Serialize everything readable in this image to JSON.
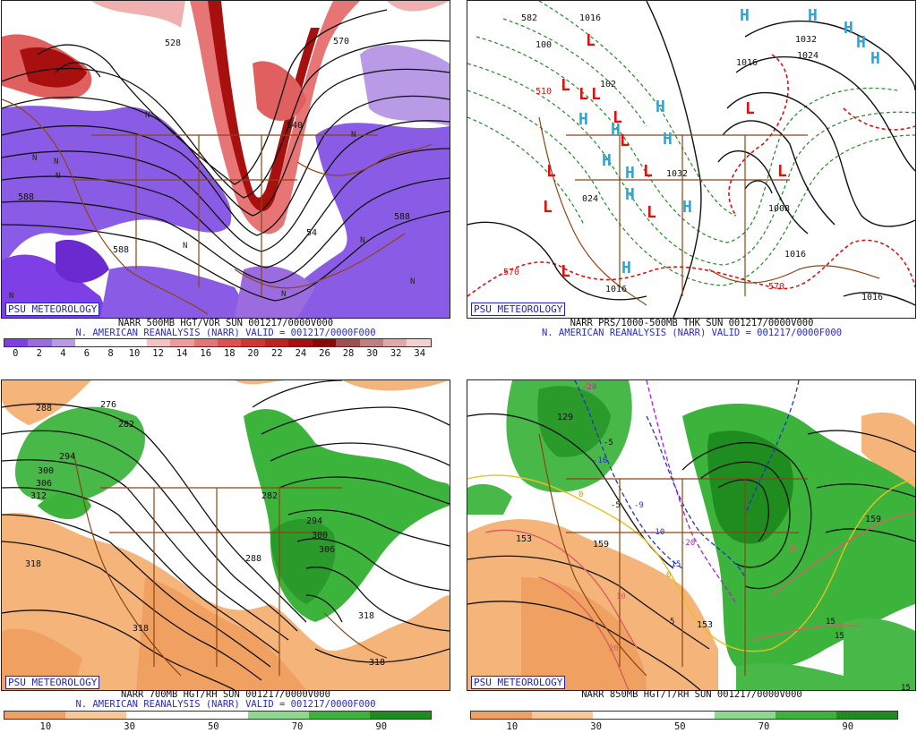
{
  "panels": [
    {
      "id": "p500",
      "source_badge": "PSU METEOROLOGY",
      "title_line": "NARR 500MB HGT/VOR SUN 001217/0000V000",
      "valid_line": "N. AMERICAN REANALYSIS (NARR) VALID = 001217/0000F000",
      "contour_labels": [
        "528",
        "588",
        "588",
        "588",
        "540",
        "570",
        "54"
      ],
      "symbols": [
        "N",
        "N",
        "N",
        "N",
        "N",
        "N",
        "N",
        "N",
        "N",
        "N"
      ],
      "colorbar_labels": [
        "0",
        "2",
        "4",
        "6",
        "8",
        "10",
        "12",
        "14",
        "16",
        "18",
        "20",
        "22",
        "24",
        "26",
        "28",
        "30",
        "32",
        "34"
      ],
      "colorbar_colors": [
        "#7f3fe6",
        "#9b6ce0",
        "#b89ae6",
        "#ffffff",
        "#ffffff",
        "#ffffff",
        "#f4c4c4",
        "#ee9c9c",
        "#e87575",
        "#e05050",
        "#d43434",
        "#c02020",
        "#a81010",
        "#8a0808",
        "#a05050",
        "#c08080",
        "#e0a8a8",
        "#f5d0d0"
      ]
    },
    {
      "id": "pprs",
      "source_badge": "PSU METEOROLOGY",
      "title_line": "NARR PRS/1000-500MB THK SUN 001217/0000V000",
      "valid_line": "N. AMERICAN REANALYSIS (NARR) VALID = 001217/0000F000",
      "contour_labels": [
        "582",
        "1016",
        "100",
        "1032",
        "1024",
        "1016",
        "102",
        "1032",
        "024",
        "1008",
        "1016",
        "1016",
        "1016",
        "570",
        "570",
        "510"
      ],
      "highs": [
        "H",
        "H",
        "H",
        "H",
        "H",
        "H",
        "H",
        "H",
        "H",
        "H",
        "H",
        "H",
        "H",
        "H"
      ],
      "lows": [
        "L",
        "L",
        "L",
        "L",
        "L",
        "L",
        "L",
        "L",
        "L",
        "L",
        "L",
        "L",
        "L"
      ]
    },
    {
      "id": "p700",
      "source_badge": "PSU METEOROLOGY",
      "title_line": "NARR 700MB HGT/RH SUN 001217/0000V000",
      "valid_line": "N. AMERICAN REANALYSIS (NARR) VALID = 001217/0000F000",
      "contour_labels": [
        "288",
        "276",
        "282",
        "294",
        "300",
        "306",
        "312",
        "282",
        "294",
        "300",
        "306",
        "288",
        "318",
        "318",
        "318",
        "318"
      ],
      "colorbar_labels": [
        "10",
        "30",
        "50",
        "70",
        "90"
      ],
      "colorbar_colors": [
        "#f0a060",
        "#f8c898",
        "#ffffff",
        "#ffffff",
        "#90d890",
        "#3cb43c",
        "#1e8c1e"
      ]
    },
    {
      "id": "p850",
      "source_badge": "PSU METEOROLOGY",
      "title_line": "NARR 850MB HGT/T/RH SUN 001217/0000V000",
      "contour_labels": [
        "129",
        "153",
        "159",
        "153",
        "159"
      ],
      "temp_labels": [
        "-20",
        "-5",
        "-10",
        "-5",
        "-9",
        "-10",
        "-20",
        "-15",
        "0",
        "0",
        "5",
        "10",
        "10",
        "20",
        "15",
        "15",
        "15",
        "10"
      ],
      "colorbar_labels": [
        "10",
        "30",
        "50",
        "70",
        "90"
      ],
      "colorbar_colors": [
        "#f0a060",
        "#f8c898",
        "#ffffff",
        "#ffffff",
        "#90d890",
        "#3cb43c",
        "#1e8c1e"
      ]
    }
  ]
}
